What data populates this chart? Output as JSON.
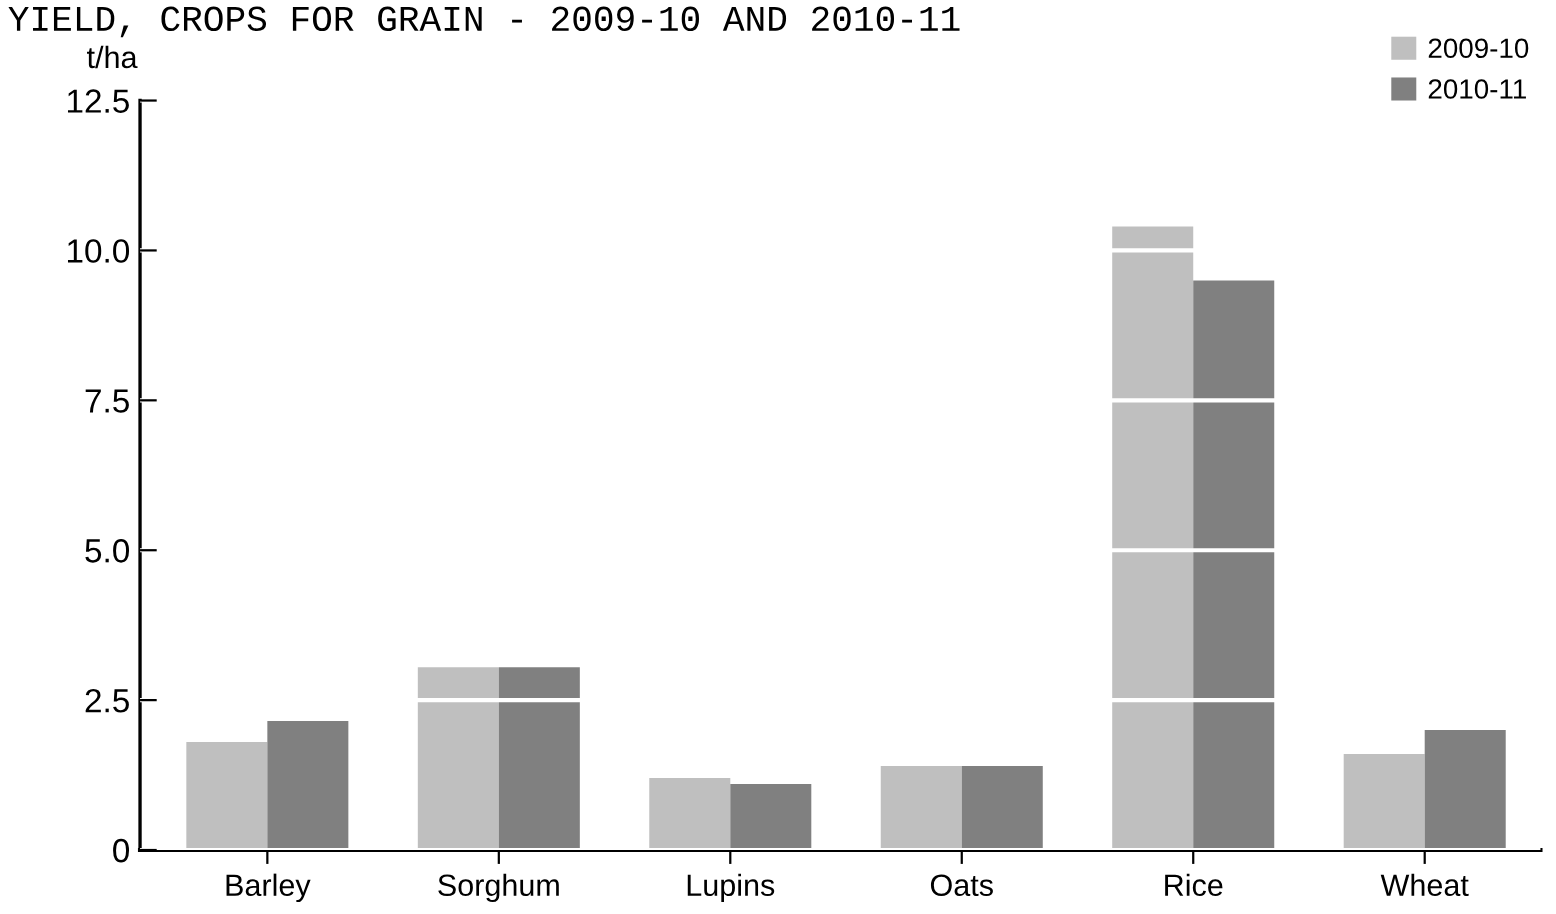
{
  "chart_data": {
    "type": "bar",
    "title": "YIELD, CROPS FOR GRAIN - 2009-10 AND 2010-11",
    "ylabel": "t/ha",
    "categories": [
      "Barley",
      "Sorghum",
      "Lupins",
      "Oats",
      "Rice",
      "Wheat"
    ],
    "series": [
      {
        "name": "2009-10",
        "color": "#bfbfbf",
        "values": [
          1.8,
          3.05,
          1.2,
          1.4,
          10.4,
          1.6
        ]
      },
      {
        "name": "2010-11",
        "color": "#808080",
        "values": [
          2.15,
          3.05,
          1.1,
          1.4,
          9.5,
          2.0
        ]
      }
    ],
    "ylim": [
      0,
      12.5
    ],
    "yticks": [
      0,
      2.5,
      {
        "value": 5,
        "label": "5.0"
      },
      7.5,
      {
        "value": 10,
        "label": "10.0"
      },
      12.5
    ],
    "grid": "y",
    "legend": "top right"
  }
}
